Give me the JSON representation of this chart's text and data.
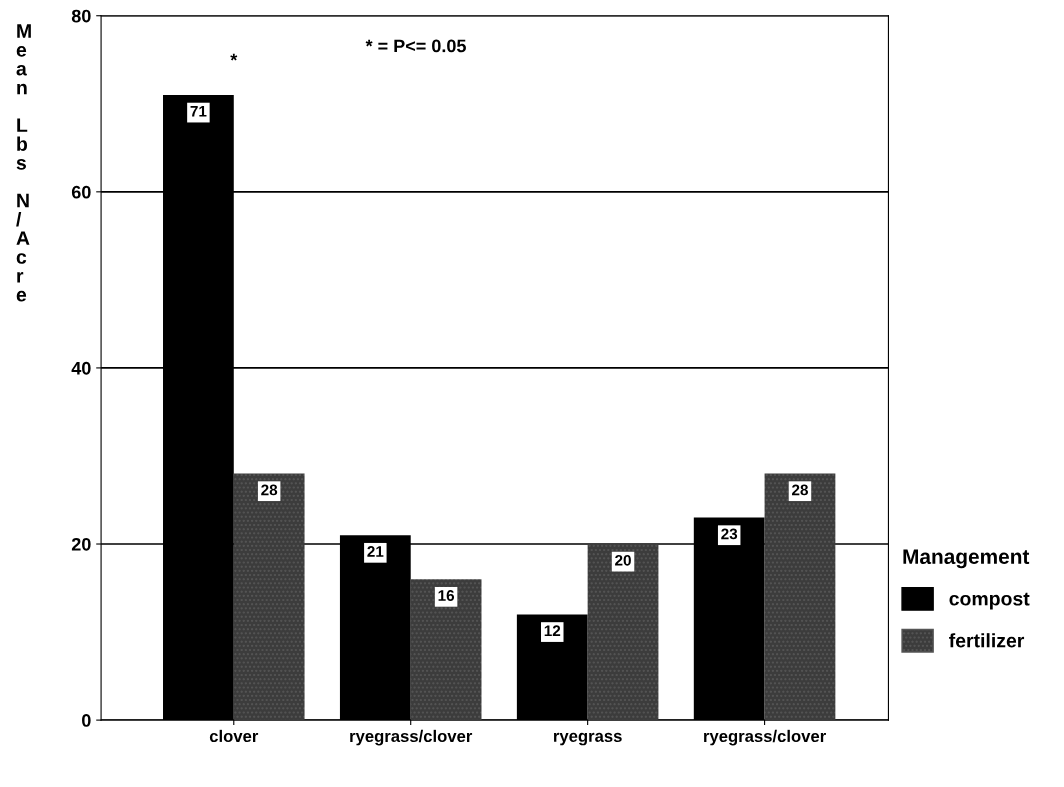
{
  "chart_data": {
    "type": "bar",
    "categories": [
      "clover",
      "ryegrass/clover",
      "ryegrass",
      "ryegrass/clover"
    ],
    "series": [
      {
        "name": "compost",
        "color": "#000000",
        "values": [
          71,
          21,
          12,
          23
        ]
      },
      {
        "name": "fertilizer",
        "color": "#3c3c3c",
        "values": [
          28,
          16,
          20,
          28
        ]
      }
    ],
    "ylabel": "Mean Lbs N/Acre",
    "ylim": [
      0,
      80
    ],
    "yticks": [
      0,
      20,
      40,
      60,
      80
    ],
    "grid": "y",
    "legend": "right",
    "legend_title": "Management",
    "data_labels": true,
    "annotations": [
      "* = P<= 0.05",
      "*"
    ]
  }
}
